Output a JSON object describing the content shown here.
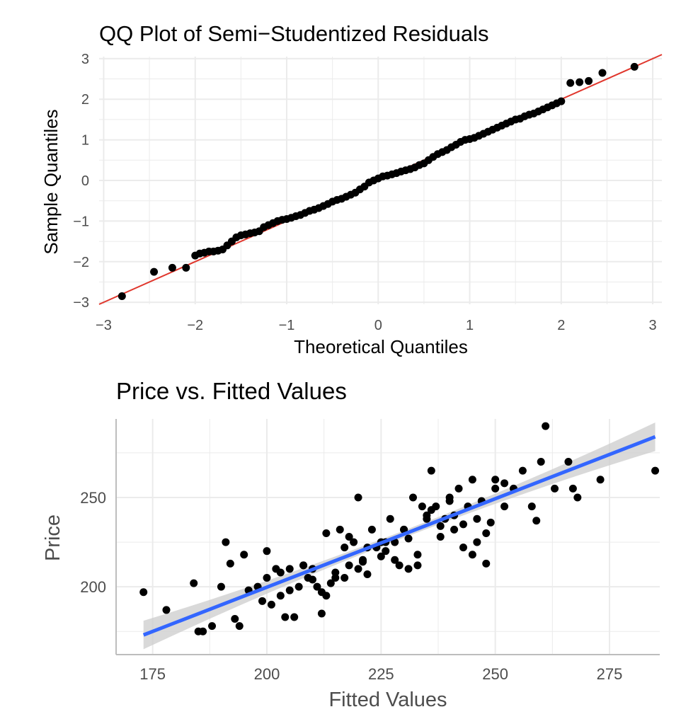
{
  "chart_data": [
    {
      "type": "scatter",
      "title": "QQ Plot of Semi−Studentized Residuals",
      "xlabel": "Theoretical Quantiles",
      "ylabel": "Sample Quantiles",
      "xlim": [
        -3.05,
        3.1
      ],
      "ylim": [
        -3.05,
        3.05
      ],
      "x_ticks": [
        "−3",
        "−2",
        "−1",
        "0",
        "1",
        "2",
        "3"
      ],
      "y_ticks": [
        "−3",
        "−2",
        "−1",
        "0",
        "1",
        "2",
        "3"
      ],
      "grid": true,
      "reference_line": {
        "intercept": 0.0,
        "slope": 1.0,
        "color": "#e0362c"
      },
      "point_color": "#000000",
      "x": [
        -2.8,
        -2.45,
        -2.25,
        -2.1,
        -2.0,
        -1.95,
        -1.9,
        -1.85,
        -1.8,
        -1.75,
        -1.7,
        -1.65,
        -1.6,
        -1.55,
        -1.5,
        -1.45,
        -1.4,
        -1.35,
        -1.3,
        -1.25,
        -1.2,
        -1.15,
        -1.1,
        -1.05,
        -1.0,
        -0.95,
        -0.9,
        -0.85,
        -0.8,
        -0.75,
        -0.7,
        -0.65,
        -0.6,
        -0.55,
        -0.5,
        -0.45,
        -0.4,
        -0.35,
        -0.3,
        -0.25,
        -0.2,
        -0.15,
        -0.1,
        -0.05,
        0.0,
        0.05,
        0.1,
        0.15,
        0.2,
        0.25,
        0.3,
        0.35,
        0.4,
        0.45,
        0.5,
        0.55,
        0.6,
        0.65,
        0.7,
        0.75,
        0.8,
        0.85,
        0.9,
        0.95,
        1.0,
        1.05,
        1.1,
        1.15,
        1.2,
        1.25,
        1.3,
        1.35,
        1.4,
        1.45,
        1.5,
        1.55,
        1.6,
        1.65,
        1.7,
        1.75,
        1.8,
        1.85,
        1.9,
        1.95,
        2.0,
        2.1,
        2.2,
        2.3,
        2.45,
        2.8
      ],
      "y": [
        -2.85,
        -2.25,
        -2.15,
        -2.15,
        -1.85,
        -1.8,
        -1.78,
        -1.75,
        -1.75,
        -1.73,
        -1.7,
        -1.6,
        -1.5,
        -1.4,
        -1.35,
        -1.33,
        -1.3,
        -1.28,
        -1.25,
        -1.15,
        -1.1,
        -1.05,
        -1.0,
        -0.97,
        -0.95,
        -0.92,
        -0.88,
        -0.85,
        -0.8,
        -0.75,
        -0.72,
        -0.68,
        -0.63,
        -0.58,
        -0.52,
        -0.48,
        -0.45,
        -0.4,
        -0.35,
        -0.3,
        -0.22,
        -0.15,
        -0.05,
        0.0,
        0.05,
        0.1,
        0.12,
        0.15,
        0.18,
        0.22,
        0.25,
        0.28,
        0.32,
        0.38,
        0.42,
        0.5,
        0.58,
        0.65,
        0.7,
        0.75,
        0.82,
        0.88,
        0.95,
        1.0,
        1.02,
        1.05,
        1.1,
        1.15,
        1.2,
        1.25,
        1.3,
        1.35,
        1.4,
        1.45,
        1.5,
        1.52,
        1.58,
        1.62,
        1.65,
        1.7,
        1.75,
        1.8,
        1.85,
        1.9,
        1.95,
        2.4,
        2.42,
        2.45,
        2.65,
        2.8
      ]
    },
    {
      "type": "scatter",
      "title": "Price vs. Fitted Values",
      "xlabel": "Fitted Values",
      "ylabel": "Price",
      "xlim": [
        167,
        286
      ],
      "ylim": [
        162,
        294
      ],
      "x_ticks": [
        "175",
        "200",
        "225",
        "250",
        "275"
      ],
      "y_ticks": [
        "200",
        "250"
      ],
      "grid": true,
      "fit_line": {
        "x_start": 173,
        "y_start": 173,
        "x_end": 285,
        "y_end": 284,
        "color": "#3366ff",
        "band_color": "#cccccc"
      },
      "point_color": "#000000",
      "x": [
        173,
        178,
        184,
        185,
        186,
        188,
        190,
        191,
        192,
        193,
        194,
        195,
        196,
        198,
        199,
        200,
        201,
        202,
        203,
        204,
        205,
        206,
        207,
        208,
        209,
        210,
        211,
        212,
        213,
        214,
        215,
        216,
        217,
        218,
        219,
        220,
        221,
        222,
        223,
        224,
        225,
        226,
        227,
        228,
        229,
        230,
        231,
        232,
        233,
        234,
        235,
        236,
        237,
        238,
        239,
        240,
        241,
        242,
        243,
        244,
        245,
        246,
        247,
        248,
        249,
        250,
        252,
        254,
        256,
        258,
        259,
        260,
        261,
        263,
        266,
        267,
        268,
        273,
        285,
        200,
        205,
        210,
        215,
        220,
        225,
        230,
        235,
        240,
        245,
        250,
        213,
        218,
        222,
        228,
        233,
        238,
        243,
        248,
        252,
        203,
        208,
        212,
        217,
        221,
        226,
        231,
        236,
        241,
        246
      ],
      "y": [
        197,
        187,
        202,
        175,
        175,
        178,
        200,
        225,
        213,
        182,
        178,
        218,
        198,
        200,
        192,
        220,
        190,
        210,
        195,
        183,
        198,
        183,
        200,
        212,
        205,
        210,
        200,
        185,
        230,
        202,
        208,
        232,
        222,
        212,
        225,
        250,
        215,
        222,
        232,
        222,
        225,
        220,
        238,
        225,
        212,
        232,
        210,
        250,
        212,
        245,
        238,
        265,
        245,
        228,
        238,
        250,
        240,
        255,
        222,
        245,
        218,
        238,
        248,
        213,
        236,
        255,
        245,
        255,
        265,
        245,
        237,
        270,
        290,
        255,
        270,
        255,
        250,
        260,
        265,
        205,
        210,
        204,
        205,
        210,
        217,
        232,
        240,
        248,
        260,
        260,
        195,
        228,
        207,
        215,
        218,
        234,
        235,
        230,
        258,
        208,
        212,
        197,
        205,
        214,
        225,
        227,
        243,
        232,
        225
      ]
    }
  ]
}
